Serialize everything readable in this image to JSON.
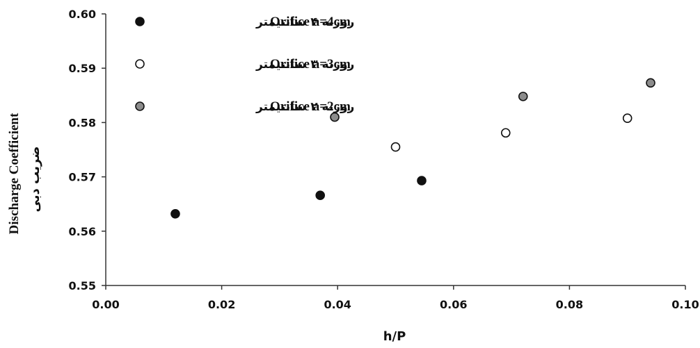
{
  "chart_data": {
    "type": "scatter",
    "title": "",
    "xlabel": "h/P",
    "ylabel": "Discharge Coefficient",
    "ylabel_fa": "ضریب دبی",
    "xlim": [
      0.0,
      0.1
    ],
    "ylim": [
      0.55,
      0.6
    ],
    "x_ticks": [
      "0.00",
      "0.02",
      "0.04",
      "0.06",
      "0.08",
      "0.10"
    ],
    "y_ticks": [
      "0.55",
      "0.56",
      "0.57",
      "0.58",
      "0.59",
      "0.60"
    ],
    "grid": false,
    "legend_position": "top-left",
    "series": [
      {
        "name": "Orifice a=4cm",
        "name_fa": "روزنه ۴ سانتیمتر",
        "marker": "filled-black",
        "color": "#111111",
        "x": [
          0.012,
          0.037,
          0.0545
        ],
        "y": [
          0.5632,
          0.5666,
          0.5693
        ]
      },
      {
        "name": "Orifice a=3cm",
        "name_fa": "روزنه ۳ سانتیمتر",
        "marker": "hollow",
        "color": "#ffffff",
        "x": [
          0.05,
          0.069,
          0.09
        ],
        "y": [
          0.5755,
          0.5781,
          0.5808
        ]
      },
      {
        "name": "Orifice a=2cm",
        "name_fa": "روزنه ۲ سانتیمتر",
        "marker": "filled-gray",
        "color": "#8c8c8c",
        "x": [
          0.0395,
          0.072,
          0.094
        ],
        "y": [
          0.581,
          0.5848,
          0.5873
        ]
      }
    ]
  }
}
